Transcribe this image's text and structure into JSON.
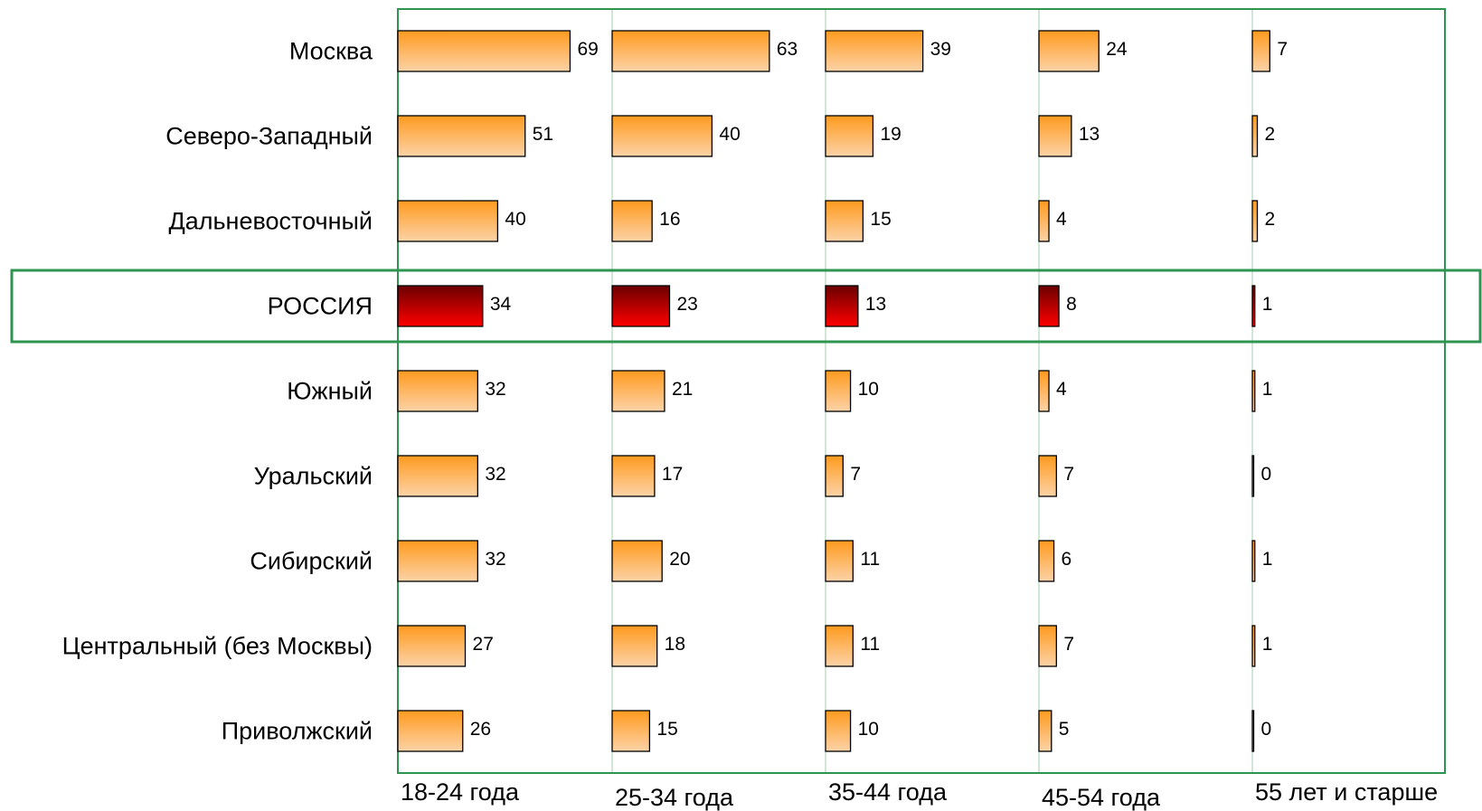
{
  "chart_data": {
    "type": "bar",
    "orientation": "horizontal-small-multiples",
    "title": "",
    "xlabel": "",
    "ylabel": "",
    "categories": [
      "Москва",
      "Северо-Западный",
      "Дальневосточный",
      "РОССИЯ",
      "Южный",
      "Уральский",
      "Сибирский",
      "Центральный (без Москвы)",
      "Приволжский"
    ],
    "highlight_category": "РОССИЯ",
    "groups": [
      "18-24 года",
      "25-34 года",
      "35-44 года",
      "45-54 года",
      "55 лет и старше"
    ],
    "series": [
      {
        "values": [
          69,
          51,
          40,
          34,
          32,
          32,
          32,
          27,
          26
        ]
      },
      {
        "values": [
          63,
          40,
          16,
          23,
          21,
          17,
          20,
          18,
          15
        ]
      },
      {
        "values": [
          39,
          19,
          15,
          13,
          10,
          7,
          11,
          11,
          10
        ]
      },
      {
        "values": [
          24,
          13,
          4,
          8,
          4,
          7,
          6,
          7,
          5
        ]
      },
      {
        "values": [
          7,
          2,
          2,
          1,
          1,
          0,
          1,
          1,
          0
        ]
      }
    ],
    "colors": {
      "bar_light": "#fcd3a8",
      "bar_dark": "#ff9a1e",
      "highlight_dark": "#6b0000",
      "highlight_light": "#ff0000",
      "frame": "#2e9450",
      "group_divider": "#9fcfa8"
    },
    "grid": false,
    "legend": "none"
  }
}
